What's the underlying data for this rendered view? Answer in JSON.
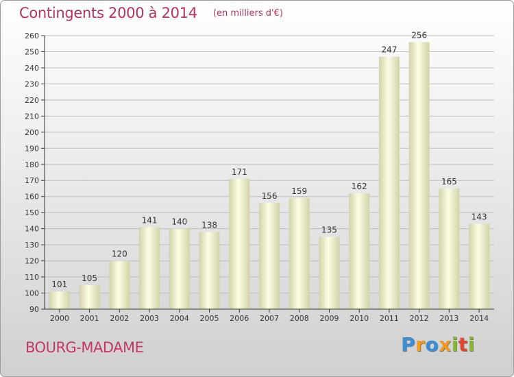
{
  "header": {
    "title": "Contingents 2000 à 2014",
    "unit": "(en milliers d'€)"
  },
  "footer": {
    "commune": "BOURG-MADAME",
    "brand": "Proxiti",
    "brand_colors": [
      "#3a8fd6",
      "#f19a1d",
      "#3a8fd6",
      "#f19a1d",
      "#88b82b",
      "#e0452d",
      "#88b82b"
    ]
  },
  "colors": {
    "title": "#b2345f",
    "bar_light": "#fdfde4",
    "bar_dark": "#d2d2a9",
    "axis": "#333333",
    "grid": "#bdbdbd"
  },
  "chart_data": {
    "type": "bar",
    "categories": [
      "2000",
      "2001",
      "2002",
      "2003",
      "2004",
      "2005",
      "2006",
      "2007",
      "2008",
      "2009",
      "2010",
      "2011",
      "2012",
      "2013",
      "2014"
    ],
    "values": [
      101,
      105,
      120,
      141,
      140,
      138,
      171,
      156,
      159,
      135,
      162,
      247,
      256,
      165,
      143
    ],
    "title": "Contingents 2000 à 2014",
    "subtitle": "(en milliers d'€)",
    "xlabel": "",
    "ylabel": "",
    "ylim": [
      90,
      260
    ],
    "yticks": [
      90,
      100,
      110,
      120,
      130,
      140,
      150,
      160,
      170,
      180,
      190,
      200,
      210,
      220,
      230,
      240,
      250,
      260
    ],
    "grid": true,
    "legend": "none",
    "data_labels": true
  }
}
